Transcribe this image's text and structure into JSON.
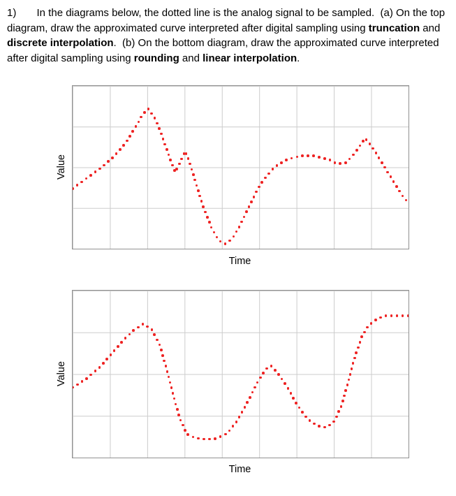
{
  "question": {
    "number": "1)",
    "segments": [
      {
        "text": "1)       In the diagrams below, the dotted line is the analog signal to be sampled.  (a) On the top diagram, draw the approximated curve interpreted after digital sampling using ",
        "bold": false
      },
      {
        "text": "truncation",
        "bold": true
      },
      {
        "text": " and ",
        "bold": false
      },
      {
        "text": "discrete interpolation",
        "bold": true
      },
      {
        "text": ".  (b) On the bottom diagram, draw the approximated curve interpreted after digital sampling using ",
        "bold": false
      },
      {
        "text": "rounding",
        "bold": true
      },
      {
        "text": " and ",
        "bold": false
      },
      {
        "text": "linear interpolation",
        "bold": true
      },
      {
        "text": ".",
        "bold": false
      }
    ]
  },
  "chart_data": [
    {
      "type": "line",
      "line_style": "dotted",
      "series_name": "analog signal (top diagram)",
      "title": "",
      "xlabel": "Time",
      "ylabel": "Value",
      "color": "#ee2222",
      "dot_size": 3.6,
      "dot_spacing": 8,
      "grid": {
        "cols": 9,
        "rows": 4,
        "line_color": "#cccccc",
        "border_color": "#919191"
      },
      "x_range": [
        0,
        1
      ],
      "y_range": [
        0,
        1
      ],
      "points": [
        [
          0.0,
          0.37
        ],
        [
          0.04,
          0.43
        ],
        [
          0.08,
          0.49
        ],
        [
          0.12,
          0.56
        ],
        [
          0.155,
          0.64
        ],
        [
          0.185,
          0.74
        ],
        [
          0.21,
          0.83
        ],
        [
          0.225,
          0.86
        ],
        [
          0.245,
          0.8
        ],
        [
          0.265,
          0.7
        ],
        [
          0.285,
          0.58
        ],
        [
          0.305,
          0.47
        ],
        [
          0.32,
          0.53
        ],
        [
          0.335,
          0.6
        ],
        [
          0.35,
          0.52
        ],
        [
          0.37,
          0.38
        ],
        [
          0.39,
          0.25
        ],
        [
          0.415,
          0.12
        ],
        [
          0.435,
          0.05
        ],
        [
          0.455,
          0.03
        ],
        [
          0.475,
          0.06
        ],
        [
          0.5,
          0.15
        ],
        [
          0.53,
          0.28
        ],
        [
          0.56,
          0.4
        ],
        [
          0.6,
          0.5
        ],
        [
          0.64,
          0.55
        ],
        [
          0.68,
          0.57
        ],
        [
          0.72,
          0.57
        ],
        [
          0.76,
          0.55
        ],
        [
          0.79,
          0.52
        ],
        [
          0.815,
          0.53
        ],
        [
          0.845,
          0.6
        ],
        [
          0.87,
          0.68
        ],
        [
          0.89,
          0.63
        ],
        [
          0.92,
          0.53
        ],
        [
          0.95,
          0.43
        ],
        [
          0.98,
          0.33
        ],
        [
          1.0,
          0.28
        ]
      ]
    },
    {
      "type": "line",
      "line_style": "dotted",
      "series_name": "analog signal (bottom diagram)",
      "title": "",
      "xlabel": "Time",
      "ylabel": "Value",
      "color": "#ee2222",
      "dot_size": 3.6,
      "dot_spacing": 8,
      "grid": {
        "cols": 9,
        "rows": 4,
        "line_color": "#cccccc",
        "border_color": "#919191"
      },
      "x_range": [
        0,
        1
      ],
      "y_range": [
        0,
        1
      ],
      "points": [
        [
          0.0,
          0.42
        ],
        [
          0.04,
          0.47
        ],
        [
          0.08,
          0.54
        ],
        [
          0.12,
          0.63
        ],
        [
          0.15,
          0.7
        ],
        [
          0.18,
          0.76
        ],
        [
          0.21,
          0.8
        ],
        [
          0.235,
          0.77
        ],
        [
          0.26,
          0.67
        ],
        [
          0.28,
          0.53
        ],
        [
          0.3,
          0.37
        ],
        [
          0.32,
          0.23
        ],
        [
          0.34,
          0.14
        ],
        [
          0.37,
          0.115
        ],
        [
          0.4,
          0.11
        ],
        [
          0.43,
          0.115
        ],
        [
          0.46,
          0.145
        ],
        [
          0.49,
          0.22
        ],
        [
          0.52,
          0.33
        ],
        [
          0.55,
          0.45
        ],
        [
          0.575,
          0.53
        ],
        [
          0.59,
          0.55
        ],
        [
          0.61,
          0.51
        ],
        [
          0.64,
          0.42
        ],
        [
          0.67,
          0.31
        ],
        [
          0.7,
          0.23
        ],
        [
          0.73,
          0.19
        ],
        [
          0.755,
          0.18
        ],
        [
          0.78,
          0.22
        ],
        [
          0.8,
          0.31
        ],
        [
          0.82,
          0.45
        ],
        [
          0.84,
          0.6
        ],
        [
          0.86,
          0.72
        ],
        [
          0.88,
          0.79
        ],
        [
          0.905,
          0.83
        ],
        [
          0.93,
          0.85
        ],
        [
          0.96,
          0.85
        ],
        [
          1.0,
          0.85
        ]
      ]
    }
  ]
}
